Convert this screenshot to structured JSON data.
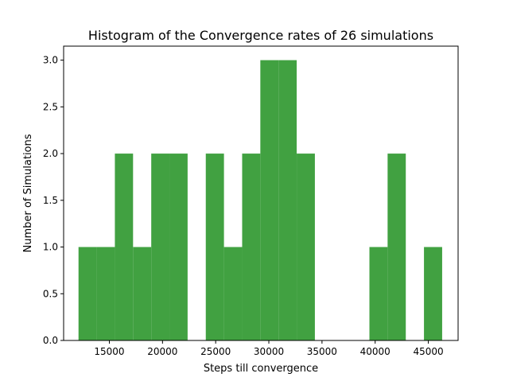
{
  "chart_data": {
    "type": "bar",
    "title": "Histogram of the Convergence rates of 26 simulations",
    "xlabel": "Steps till convergence",
    "ylabel": "Number of Simulations",
    "xlim": [
      10700,
      47800
    ],
    "ylim": [
      0,
      3.15
    ],
    "x_ticks": [
      15000,
      20000,
      25000,
      30000,
      35000,
      40000,
      45000
    ],
    "y_ticks": [
      0.0,
      0.5,
      1.0,
      1.5,
      2.0,
      2.5,
      3.0
    ],
    "bin_start": 12100,
    "bin_width": 1710,
    "values": [
      1,
      1,
      2,
      1,
      2,
      2,
      0,
      2,
      1,
      2,
      3,
      3,
      2,
      0,
      0,
      0,
      1,
      2,
      0,
      1
    ],
    "bar_color": "#41a141",
    "grid": false,
    "legend": "none"
  }
}
